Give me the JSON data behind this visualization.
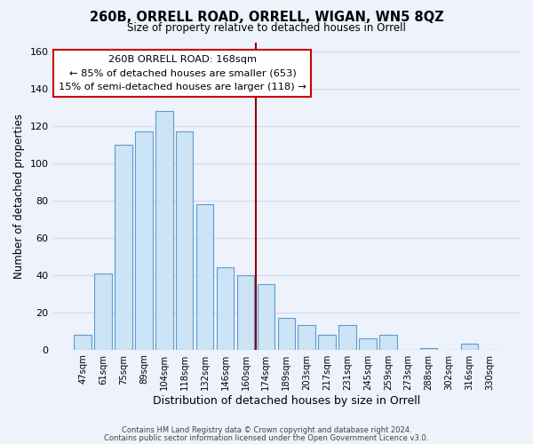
{
  "title": "260B, ORRELL ROAD, ORRELL, WIGAN, WN5 8QZ",
  "subtitle": "Size of property relative to detached houses in Orrell",
  "xlabel": "Distribution of detached houses by size in Orrell",
  "ylabel": "Number of detached properties",
  "bar_labels": [
    "47sqm",
    "61sqm",
    "75sqm",
    "89sqm",
    "104sqm",
    "118sqm",
    "132sqm",
    "146sqm",
    "160sqm",
    "174sqm",
    "189sqm",
    "203sqm",
    "217sqm",
    "231sqm",
    "245sqm",
    "259sqm",
    "273sqm",
    "288sqm",
    "302sqm",
    "316sqm",
    "330sqm"
  ],
  "bar_values": [
    8,
    41,
    110,
    117,
    128,
    117,
    78,
    44,
    40,
    35,
    17,
    13,
    8,
    13,
    6,
    8,
    0,
    1,
    0,
    3,
    0
  ],
  "bar_color": "#cce4f5",
  "bar_edge_color": "#5b9bd5",
  "vline_color": "#8b0000",
  "annotation_title": "260B ORRELL ROAD: 168sqm",
  "annotation_line1": "← 85% of detached houses are smaller (653)",
  "annotation_line2": "15% of semi-detached houses are larger (118) →",
  "annotation_box_color": "#ffffff",
  "annotation_box_edge": "#cc0000",
  "ylim": [
    0,
    165
  ],
  "yticks": [
    0,
    20,
    40,
    60,
    80,
    100,
    120,
    140,
    160
  ],
  "footer1": "Contains HM Land Registry data © Crown copyright and database right 2024.",
  "footer2": "Contains public sector information licensed under the Open Government Licence v3.0.",
  "bg_color": "#eef2fb",
  "grid_color": "#d0d8ee"
}
